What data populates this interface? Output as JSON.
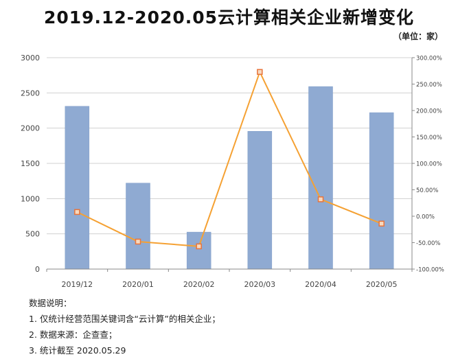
{
  "title": "2019.12-2020.05云计算相关企业新增变化",
  "unit_label": "（单位：家）",
  "notes": {
    "heading": "数据说明：",
    "items": [
      "1. 仅统计经营范围关键词含“云计算”的相关企业；",
      "2. 数据来源：企查查；",
      "3. 统计截至 2020.05.29"
    ]
  },
  "colors": {
    "bar": "#8faad2",
    "bar_border": "#7f9cc8",
    "line": "#f5a133",
    "marker": "#e8743b",
    "grid": "#d0d0d0"
  },
  "chart_data": {
    "type": "bar",
    "categories": [
      "2019/12",
      "2020/01",
      "2020/02",
      "2020/03",
      "2020/04",
      "2020/05"
    ],
    "series": [
      {
        "type": "bar",
        "axis": "left",
        "values": [
          2310,
          1220,
          525,
          1955,
          2590,
          2220
        ]
      },
      {
        "type": "line",
        "axis": "right",
        "values": [
          8,
          -48,
          -57,
          273,
          32,
          -14
        ]
      }
    ],
    "y_left": {
      "min": 0,
      "max": 3000,
      "ticks": [
        "0",
        "500",
        "1000",
        "1500",
        "2000",
        "2500",
        "3000"
      ]
    },
    "y_right": {
      "min": -100,
      "max": 300,
      "ticks": [
        "-100.00%",
        "-50.00%",
        "0.00%",
        "50.00%",
        "100.00%",
        "150.00%",
        "200.00%",
        "250.00%",
        "300.00%"
      ]
    },
    "grid": true
  }
}
